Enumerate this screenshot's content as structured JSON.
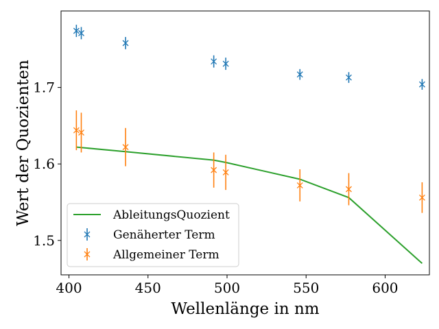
{
  "chart_data": {
    "type": "scatter",
    "xlabel": "Wellenlänge in nm",
    "ylabel": "Wert der Quozienten",
    "xlim": [
      395,
      628
    ],
    "ylim": [
      1.455,
      1.8
    ],
    "xticks": [
      400,
      450,
      500,
      550,
      600
    ],
    "yticks": [
      1.5,
      1.6,
      1.7
    ],
    "xtick_labels": [
      "400",
      "450",
      "500",
      "550",
      "600"
    ],
    "ytick_labels": [
      "1.5",
      "1.6",
      "1.7"
    ],
    "grid": false,
    "legend_position": "lower-left",
    "series": [
      {
        "name": "AbleitungsQuozient",
        "kind": "line",
        "color": "#2ca02c",
        "x": [
          404.7,
          435.8,
          491.6,
          499.2,
          546.1,
          577.0,
          623.4
        ],
        "y": [
          1.622,
          1.616,
          1.605,
          1.602,
          1.58,
          1.556,
          1.47
        ]
      },
      {
        "name": "Genäherter Term",
        "kind": "errorbar",
        "color": "#1f77b4",
        "x": [
          404.7,
          407.8,
          435.8,
          491.6,
          499.2,
          546.1,
          577.0,
          623.4
        ],
        "y": [
          1.774,
          1.771,
          1.758,
          1.734,
          1.731,
          1.717,
          1.713,
          1.704
        ],
        "yerr": [
          0.008,
          0.008,
          0.008,
          0.008,
          0.008,
          0.007,
          0.007,
          0.007
        ]
      },
      {
        "name": "Allgemeiner Term",
        "kind": "errorbar",
        "color": "#ff7f0e",
        "x": [
          404.7,
          407.8,
          435.8,
          491.6,
          499.2,
          546.1,
          577.0,
          623.4
        ],
        "y": [
          1.644,
          1.641,
          1.622,
          1.592,
          1.589,
          1.572,
          1.567,
          1.556
        ],
        "yerr": [
          0.026,
          0.026,
          0.025,
          0.023,
          0.023,
          0.021,
          0.021,
          0.02
        ]
      }
    ]
  }
}
